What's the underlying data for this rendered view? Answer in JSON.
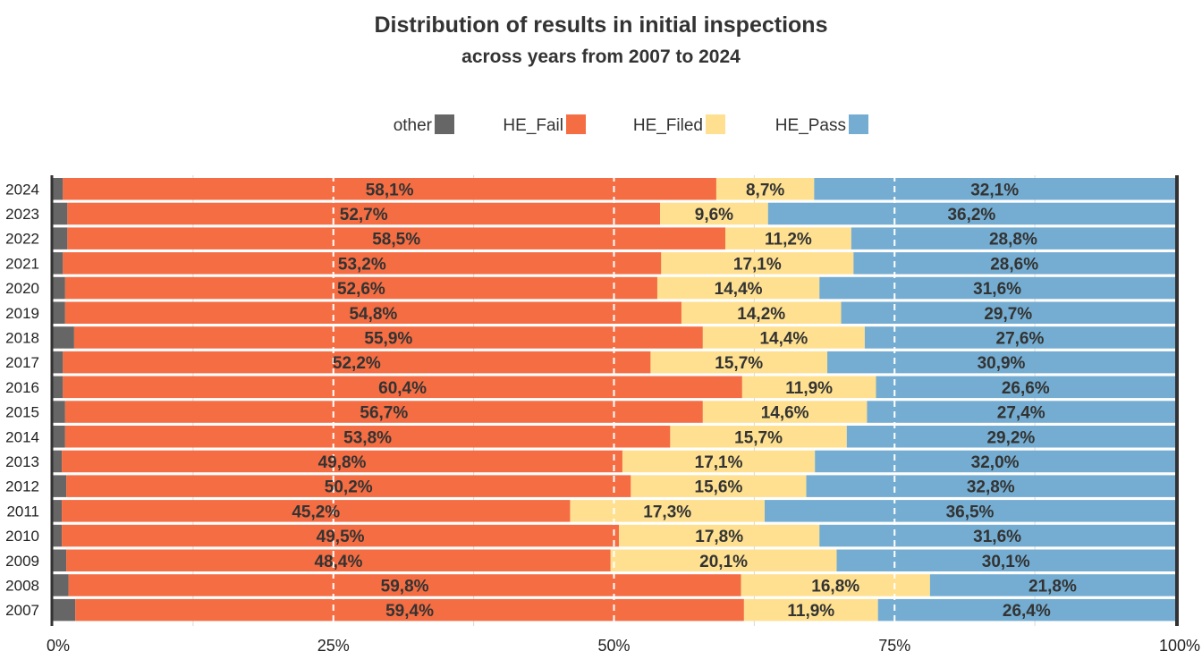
{
  "chart_data": {
    "type": "bar",
    "orientation": "horizontal",
    "stacked": true,
    "normalized": true,
    "title": "Distribution of results in initial inspections",
    "subtitle": "across years from 2007 to 2024",
    "xlabel": "",
    "ylabel": "",
    "xlim": [
      0,
      100
    ],
    "x_ticks": [
      "0%",
      "25%",
      "50%",
      "75%",
      "100%"
    ],
    "legend_position": "top",
    "categories": [
      "2024",
      "2023",
      "2022",
      "2021",
      "2020",
      "2019",
      "2018",
      "2017",
      "2016",
      "2015",
      "2014",
      "2013",
      "2012",
      "2011",
      "2010",
      "2009",
      "2008",
      "2007"
    ],
    "series": [
      {
        "name": "other",
        "color": "#666666",
        "values": [
          0.9,
          1.3,
          1.3,
          0.9,
          1.1,
          1.1,
          1.9,
          0.9,
          0.9,
          1.1,
          1.1,
          0.8,
          1.2,
          0.8,
          0.8,
          1.2,
          1.4,
          2.0
        ],
        "labels": [
          "",
          "",
          "",
          "",
          "",
          "",
          "",
          "",
          "",
          "",
          "",
          "",
          "",
          "",
          "",
          "",
          "",
          ""
        ]
      },
      {
        "name": "HE_Fail",
        "color": "#F46D43",
        "values": [
          58.1,
          52.7,
          58.5,
          53.2,
          52.6,
          54.8,
          55.9,
          52.2,
          60.4,
          56.7,
          53.8,
          49.8,
          50.2,
          45.2,
          49.5,
          48.4,
          59.8,
          59.4
        ],
        "labels": [
          "58,1%",
          "52,7%",
          "58,5%",
          "53,2%",
          "52,6%",
          "54,8%",
          "55,9%",
          "52,2%",
          "60,4%",
          "56,7%",
          "53,8%",
          "49,8%",
          "50,2%",
          "45,2%",
          "49,5%",
          "48,4%",
          "59,8%",
          "59,4%"
        ]
      },
      {
        "name": "HE_Filed",
        "color": "#FEE090",
        "values": [
          8.7,
          9.6,
          11.2,
          17.1,
          14.4,
          14.2,
          14.4,
          15.7,
          11.9,
          14.6,
          15.7,
          17.1,
          15.6,
          17.3,
          17.8,
          20.1,
          16.8,
          11.9
        ],
        "labels": [
          "8,7%",
          "9,6%",
          "11,2%",
          "17,1%",
          "14,4%",
          "14,2%",
          "14,4%",
          "15,7%",
          "11,9%",
          "14,6%",
          "15,7%",
          "17,1%",
          "15,6%",
          "17,3%",
          "17,8%",
          "20,1%",
          "16,8%",
          "11,9%"
        ]
      },
      {
        "name": "HE_Pass",
        "color": "#74ADD1",
        "values": [
          32.1,
          36.2,
          28.8,
          28.6,
          31.6,
          29.7,
          27.6,
          30.9,
          26.6,
          27.4,
          29.2,
          32.0,
          32.8,
          36.5,
          31.6,
          30.1,
          21.8,
          26.4
        ],
        "labels": [
          "32,1%",
          "36,2%",
          "28,8%",
          "28,6%",
          "31,6%",
          "29,7%",
          "27,6%",
          "30,9%",
          "26,6%",
          "27,4%",
          "29,2%",
          "32,0%",
          "32,8%",
          "36,5%",
          "31,6%",
          "30,1%",
          "21,8%",
          "26,4%"
        ]
      }
    ]
  }
}
